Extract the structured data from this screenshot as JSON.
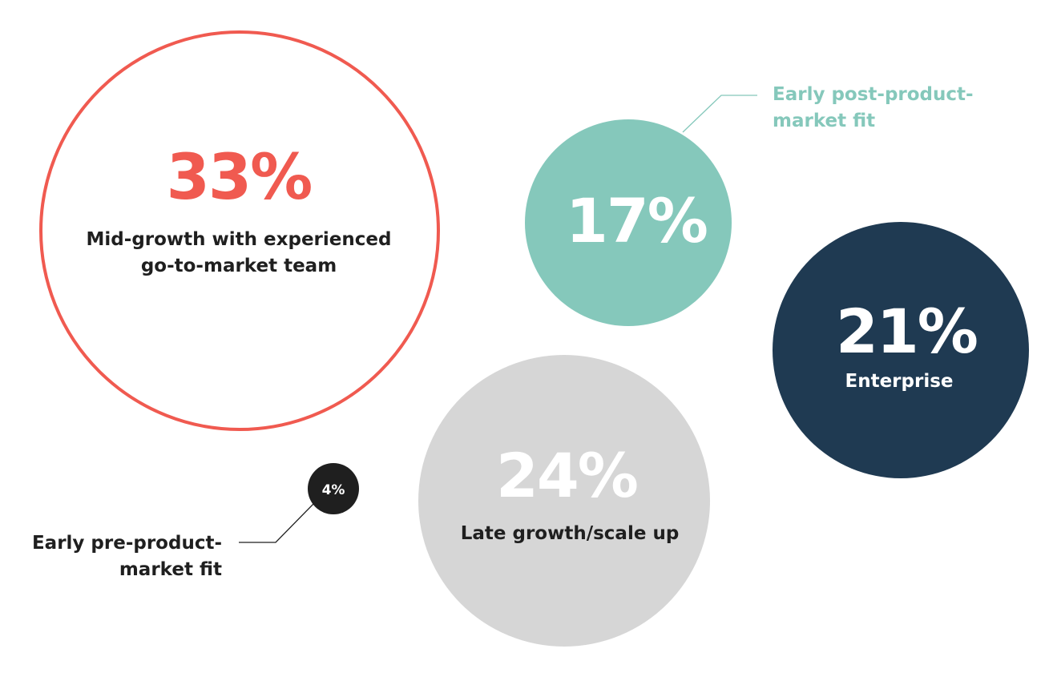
{
  "chart_data": {
    "type": "bubble",
    "unit": "%",
    "categories": [
      "Mid-growth with experienced go-to-market team",
      "Early post-product-market fit",
      "Enterprise",
      "Late growth/scale up",
      "Early pre-product-market fit"
    ],
    "values": [
      33,
      17,
      21,
      24,
      4
    ],
    "value_labels": [
      "33%",
      "17%",
      "21%",
      "24%",
      "4%"
    ],
    "label_lines": [
      [
        "Mid-growth with experienced",
        "go-to-market team"
      ],
      [
        "Early post-product-",
        "market fit"
      ],
      [
        "Enterprise"
      ],
      [
        "Late growth/scale up"
      ],
      [
        "Early pre-product-",
        "market fit"
      ]
    ],
    "colors": [
      "#f05a50",
      "#85c8bb",
      "#1f3a52",
      "#d6d6d6",
      "#1f1f1f"
    ]
  }
}
